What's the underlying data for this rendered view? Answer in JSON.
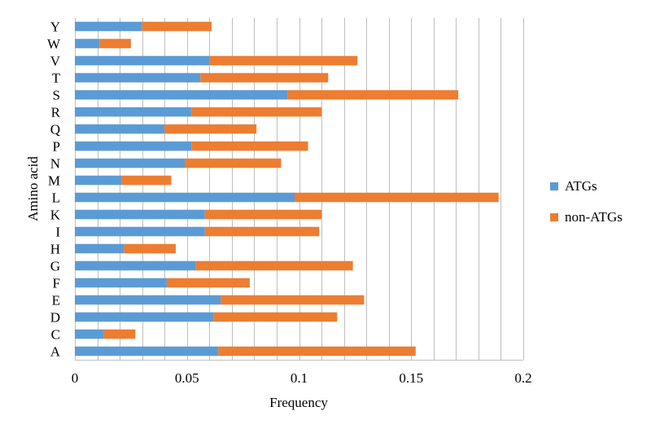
{
  "chart_data": {
    "type": "bar",
    "orientation": "horizontal",
    "stacked": true,
    "title": "",
    "xlabel": "Frequency",
    "ylabel": "Amino acid",
    "xlim": [
      0,
      0.2
    ],
    "x_ticks": [
      0,
      0.05,
      0.1,
      0.15,
      0.2
    ],
    "x_tick_labels": [
      "0",
      "0.05",
      "0.1",
      "0.15",
      "0.2"
    ],
    "grid": true,
    "legend_position": "right",
    "categories": [
      "A",
      "C",
      "D",
      "E",
      "F",
      "G",
      "H",
      "I",
      "K",
      "L",
      "M",
      "N",
      "P",
      "Q",
      "R",
      "S",
      "T",
      "V",
      "W",
      "Y"
    ],
    "series": [
      {
        "name": "ATGs",
        "color": "#5b9bd5",
        "values": [
          0.064,
          0.013,
          0.062,
          0.065,
          0.041,
          0.054,
          0.022,
          0.058,
          0.058,
          0.098,
          0.021,
          0.049,
          0.052,
          0.04,
          0.052,
          0.095,
          0.056,
          0.06,
          0.011,
          0.03
        ]
      },
      {
        "name": "non-ATGs",
        "color": "#ed7d31",
        "values": [
          0.088,
          0.014,
          0.055,
          0.064,
          0.037,
          0.07,
          0.023,
          0.051,
          0.052,
          0.091,
          0.022,
          0.043,
          0.052,
          0.041,
          0.058,
          0.076,
          0.057,
          0.066,
          0.014,
          0.031
        ]
      }
    ]
  }
}
